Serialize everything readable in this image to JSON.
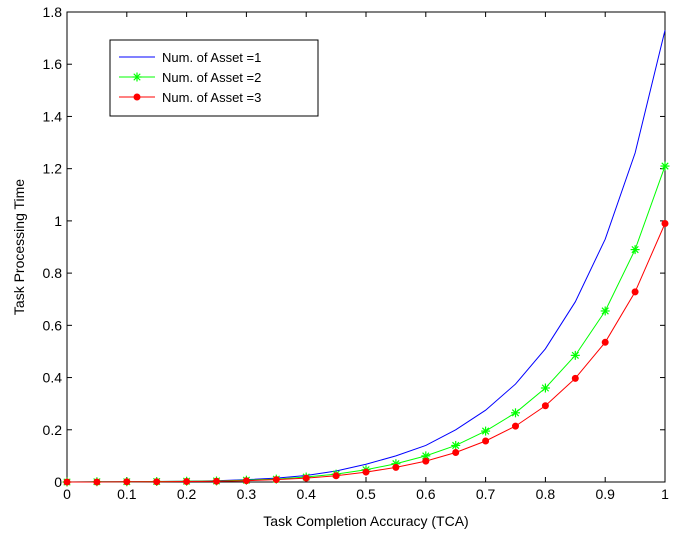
{
  "chart_data": {
    "type": "line",
    "title": "",
    "xlabel": "Task Completion Accuracy (TCA)",
    "ylabel": "Task Processing Time",
    "xlim": [
      0,
      1
    ],
    "ylim": [
      0,
      1.8
    ],
    "xticks": [
      0,
      0.1,
      0.2,
      0.3,
      0.4,
      0.5,
      0.6,
      0.7,
      0.8,
      0.9,
      1
    ],
    "xtick_labels": [
      "0",
      "0.1",
      "0.2",
      "0.3",
      "0.4",
      "0.5",
      "0.6",
      "0.7",
      "0.8",
      "0.9",
      "1"
    ],
    "yticks": [
      0,
      0.2,
      0.4,
      0.6,
      0.8,
      1,
      1.2,
      1.4,
      1.6,
      1.8
    ],
    "ytick_labels": [
      "0",
      "0.2",
      "0.4",
      "0.6",
      "0.8",
      "1",
      "1.2",
      "1.4",
      "1.6",
      "1.8"
    ],
    "grid": false,
    "legend_position": "top-left",
    "x": [
      0,
      0.05,
      0.1,
      0.15,
      0.2,
      0.25,
      0.3,
      0.35,
      0.4,
      0.45,
      0.5,
      0.55,
      0.6,
      0.65,
      0.7,
      0.75,
      0.8,
      0.85,
      0.9,
      0.95,
      1
    ],
    "series": [
      {
        "name": "Num. of Asset =1",
        "color": "#0000ff",
        "marker": "none",
        "values": [
          0,
          0.001,
          0.001,
          0.002,
          0.003,
          0.005,
          0.009,
          0.015,
          0.025,
          0.042,
          0.068,
          0.1,
          0.14,
          0.2,
          0.275,
          0.375,
          0.51,
          0.69,
          0.93,
          1.26,
          1.73
        ]
      },
      {
        "name": "Num. of Asset =2",
        "color": "#00ff00",
        "marker": "asterisk",
        "values": [
          0,
          0.001,
          0.001,
          0.002,
          0.003,
          0.004,
          0.007,
          0.011,
          0.019,
          0.03,
          0.047,
          0.07,
          0.1,
          0.14,
          0.195,
          0.265,
          0.36,
          0.485,
          0.655,
          0.89,
          1.21
        ]
      },
      {
        "name": "Num. of Asset =3",
        "color": "#ff0000",
        "marker": "dot",
        "values": [
          0,
          0,
          0.001,
          0.001,
          0.002,
          0.003,
          0.005,
          0.009,
          0.015,
          0.024,
          0.038,
          0.056,
          0.08,
          0.113,
          0.157,
          0.214,
          0.292,
          0.397,
          0.535,
          0.728,
          0.99
        ]
      }
    ]
  }
}
